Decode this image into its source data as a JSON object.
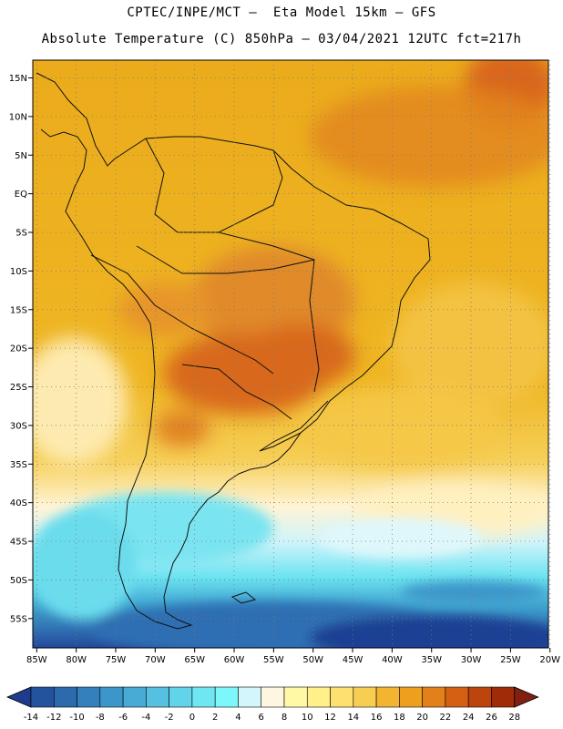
{
  "header": {
    "line1": "CPTEC/INPE/MCT –  Eta Model 15km – GFS",
    "line2": "Absolute Temperature (C) 850hPa – 03/04/2021 12UTC fct=217h"
  },
  "map": {
    "lat_labels": [
      "15N",
      "10N",
      "5N",
      "EQ",
      "5S",
      "10S",
      "15S",
      "20S",
      "25S",
      "30S",
      "35S",
      "40S",
      "45S",
      "50S",
      "55S"
    ],
    "lat_values": [
      15,
      10,
      5,
      0,
      -5,
      -10,
      -15,
      -20,
      -25,
      -30,
      -35,
      -40,
      -45,
      -50,
      -55
    ],
    "lon_labels": [
      "85W",
      "80W",
      "75W",
      "70W",
      "65W",
      "60W",
      "55W",
      "50W",
      "45W",
      "40W",
      "35W",
      "30W",
      "25W",
      "20W"
    ],
    "lon_values": [
      -85,
      -80,
      -75,
      -70,
      -65,
      -60,
      -55,
      -50,
      -45,
      -40,
      -35,
      -30,
      -25,
      -20
    ],
    "lon_range": [
      -85.5,
      -20.2
    ],
    "lat_range": [
      -58.8,
      17.3
    ]
  },
  "colorbar": {
    "unit": "C",
    "labels": [
      "-14",
      "-12",
      "-10",
      "-8",
      "-6",
      "-4",
      "-2",
      "0",
      "2",
      "4",
      "6",
      "8",
      "10",
      "12",
      "14",
      "16",
      "18",
      "20",
      "22",
      "24",
      "26",
      "28"
    ],
    "colors": [
      "#1f3b8c",
      "#24539e",
      "#2b6aad",
      "#3380bc",
      "#3d96c9",
      "#48abd5",
      "#55c0e0",
      "#62d4ea",
      "#6fe7f3",
      "#7cf8fb",
      "#d2f6fb",
      "#fff6e2",
      "#fff9a6",
      "#fff08a",
      "#fde070",
      "#f7cd52",
      "#f2b431",
      "#eca01e",
      "#e2801a",
      "#d56013",
      "#bd440d",
      "#9f2b08",
      "#802012"
    ]
  }
}
